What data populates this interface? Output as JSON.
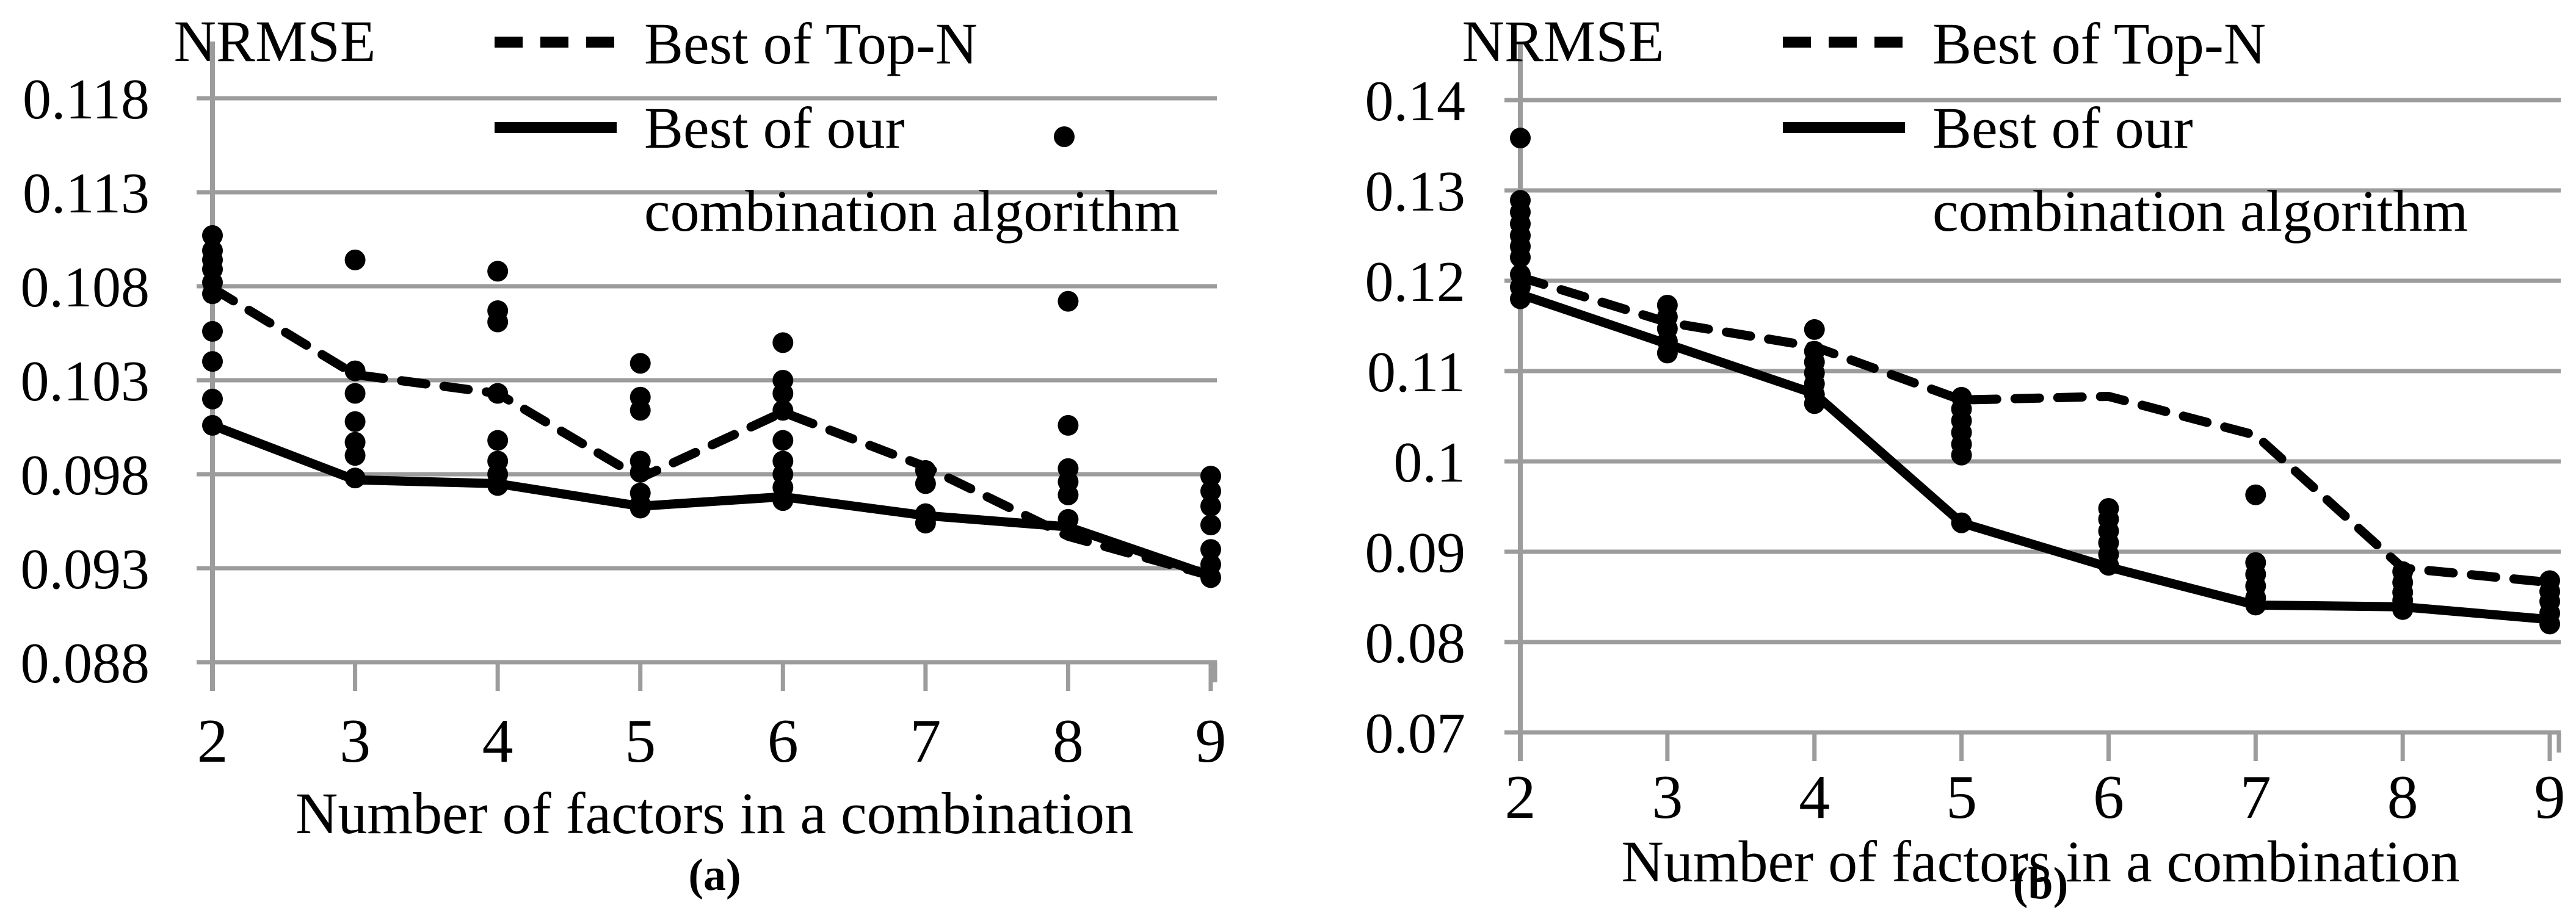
{
  "figure": {
    "background_color": "#ffffff",
    "series_color": "#000000",
    "grid_color": "#9c9c9c"
  },
  "chart_data": [
    {
      "type": "line+scatter",
      "panel": "a",
      "title": "NRMSE",
      "xlabel": "Number of factors in a combination",
      "caption": "(a)",
      "grid": true,
      "legend_position": "top-right",
      "legend": {
        "top_n_label": "Best of Top-N",
        "ours_label_line1": "Best of our",
        "ours_label_line2": "combination algorithm",
        "has_dot_marker": true
      },
      "x": [
        2,
        3,
        4,
        5,
        6,
        7,
        8,
        9
      ],
      "x_tick_labels": [
        "2",
        "3",
        "4",
        "5",
        "6",
        "7",
        "8",
        "9"
      ],
      "y_tick_labels": [
        "0.118",
        "0.113",
        "0.108",
        "0.103",
        "0.098",
        "0.093",
        "0.088"
      ],
      "y_tick_values": [
        0.118,
        0.113,
        0.108,
        0.103,
        0.098,
        0.093,
        0.088
      ],
      "ylim": [
        0.088,
        0.118
      ],
      "series": [
        {
          "name": "Best of Top-N",
          "style": "dashed",
          "values": [
            0.1079,
            0.1033,
            0.1023,
            0.0978,
            0.1013,
            0.0984,
            0.0947,
            0.0926
          ]
        },
        {
          "name": "Best of our combination algorithm",
          "style": "solid",
          "values": [
            0.1006,
            0.0977,
            0.0975,
            0.0963,
            0.0968,
            0.0958,
            0.0952,
            0.0926
          ]
        }
      ],
      "scatter_by_x": [
        {
          "x": 2,
          "values": [
            0.1107,
            0.1099,
            0.1094,
            0.1089,
            0.1082,
            0.1076,
            0.1056,
            0.104,
            0.102,
            0.1006
          ]
        },
        {
          "x": 3,
          "values": [
            0.1094,
            0.1035,
            0.1023,
            0.1008,
            0.0997,
            0.099,
            0.0978
          ]
        },
        {
          "x": 4,
          "values": [
            0.1088,
            0.1067,
            0.1061,
            0.1023,
            0.0998,
            0.0987,
            0.098,
            0.0974
          ]
        },
        {
          "x": 5,
          "values": [
            0.1039,
            0.1021,
            0.1014,
            0.0987,
            0.0981,
            0.097,
            0.0964,
            0.0962
          ]
        },
        {
          "x": 6,
          "values": [
            0.105,
            0.103,
            0.1023,
            0.1014,
            0.0998,
            0.0987,
            0.098,
            0.0973,
            0.0966
          ]
        },
        {
          "x": 7,
          "values": [
            0.0982,
            0.0975,
            0.0959,
            0.0954
          ]
        },
        {
          "x": 8,
          "values": [
            0.1072,
            0.1006,
            0.0983,
            0.0976,
            0.0969,
            0.0956
          ]
        },
        {
          "x": 9,
          "values": [
            0.0979,
            0.0971,
            0.0963,
            0.0953,
            0.094,
            0.0932,
            0.0925
          ]
        }
      ]
    },
    {
      "type": "line+scatter",
      "panel": "b",
      "title": "NRMSE",
      "xlabel": "Number of factors in a combination",
      "caption": "(b)",
      "grid": true,
      "legend_position": "top-right",
      "legend": {
        "top_n_label": "Best of Top-N",
        "ours_label_line1": "Best of our",
        "ours_label_line2": "combination algorithm",
        "has_dot_marker": false
      },
      "x": [
        2,
        3,
        4,
        5,
        6,
        7,
        8,
        9
      ],
      "x_tick_labels": [
        "2",
        "3",
        "4",
        "5",
        "6",
        "7",
        "8",
        "9"
      ],
      "y_tick_labels": [
        "0.14",
        "0.13",
        "0.12",
        "0.11",
        "0.1",
        "0.09",
        "0.08",
        "0.07"
      ],
      "y_tick_values": [
        0.14,
        0.13,
        0.12,
        0.11,
        0.1,
        0.09,
        0.08,
        0.07
      ],
      "ylim": [
        0.07,
        0.14
      ],
      "series": [
        {
          "name": "Best of Top-N",
          "style": "dashed",
          "values": [
            0.1204,
            0.1154,
            0.1127,
            0.1068,
            0.1072,
            0.1029,
            0.0882,
            0.0866
          ]
        },
        {
          "name": "Best of our combination algorithm",
          "style": "solid",
          "values": [
            0.1185,
            0.113,
            0.1075,
            0.0932,
            0.0883,
            0.0841,
            0.0839,
            0.0825
          ]
        }
      ],
      "scatter_by_x": [
        {
          "x": 2,
          "values": [
            0.1358,
            0.1289,
            0.1276,
            0.1263,
            0.125,
            0.1238,
            0.1226,
            0.1207,
            0.1193,
            0.118
          ]
        },
        {
          "x": 3,
          "values": [
            0.1173,
            0.116,
            0.1147,
            0.1133,
            0.112
          ]
        },
        {
          "x": 4,
          "values": [
            0.1146,
            0.1122,
            0.111,
            0.1098,
            0.1086,
            0.1074,
            0.1064
          ]
        },
        {
          "x": 5,
          "values": [
            0.1071,
            0.1058,
            0.1045,
            0.1032,
            0.1019,
            0.1007,
            0.0932
          ]
        },
        {
          "x": 6,
          "values": [
            0.0948,
            0.0936,
            0.0923,
            0.091,
            0.0897,
            0.0885
          ]
        },
        {
          "x": 7,
          "values": [
            0.0963,
            0.0888,
            0.0875,
            0.0862,
            0.0849,
            0.0841
          ]
        },
        {
          "x": 8,
          "values": [
            0.0878,
            0.0866,
            0.0855,
            0.0846,
            0.0836
          ]
        },
        {
          "x": 9,
          "values": [
            0.0868,
            0.0856,
            0.0845,
            0.0832,
            0.082
          ]
        }
      ]
    }
  ]
}
